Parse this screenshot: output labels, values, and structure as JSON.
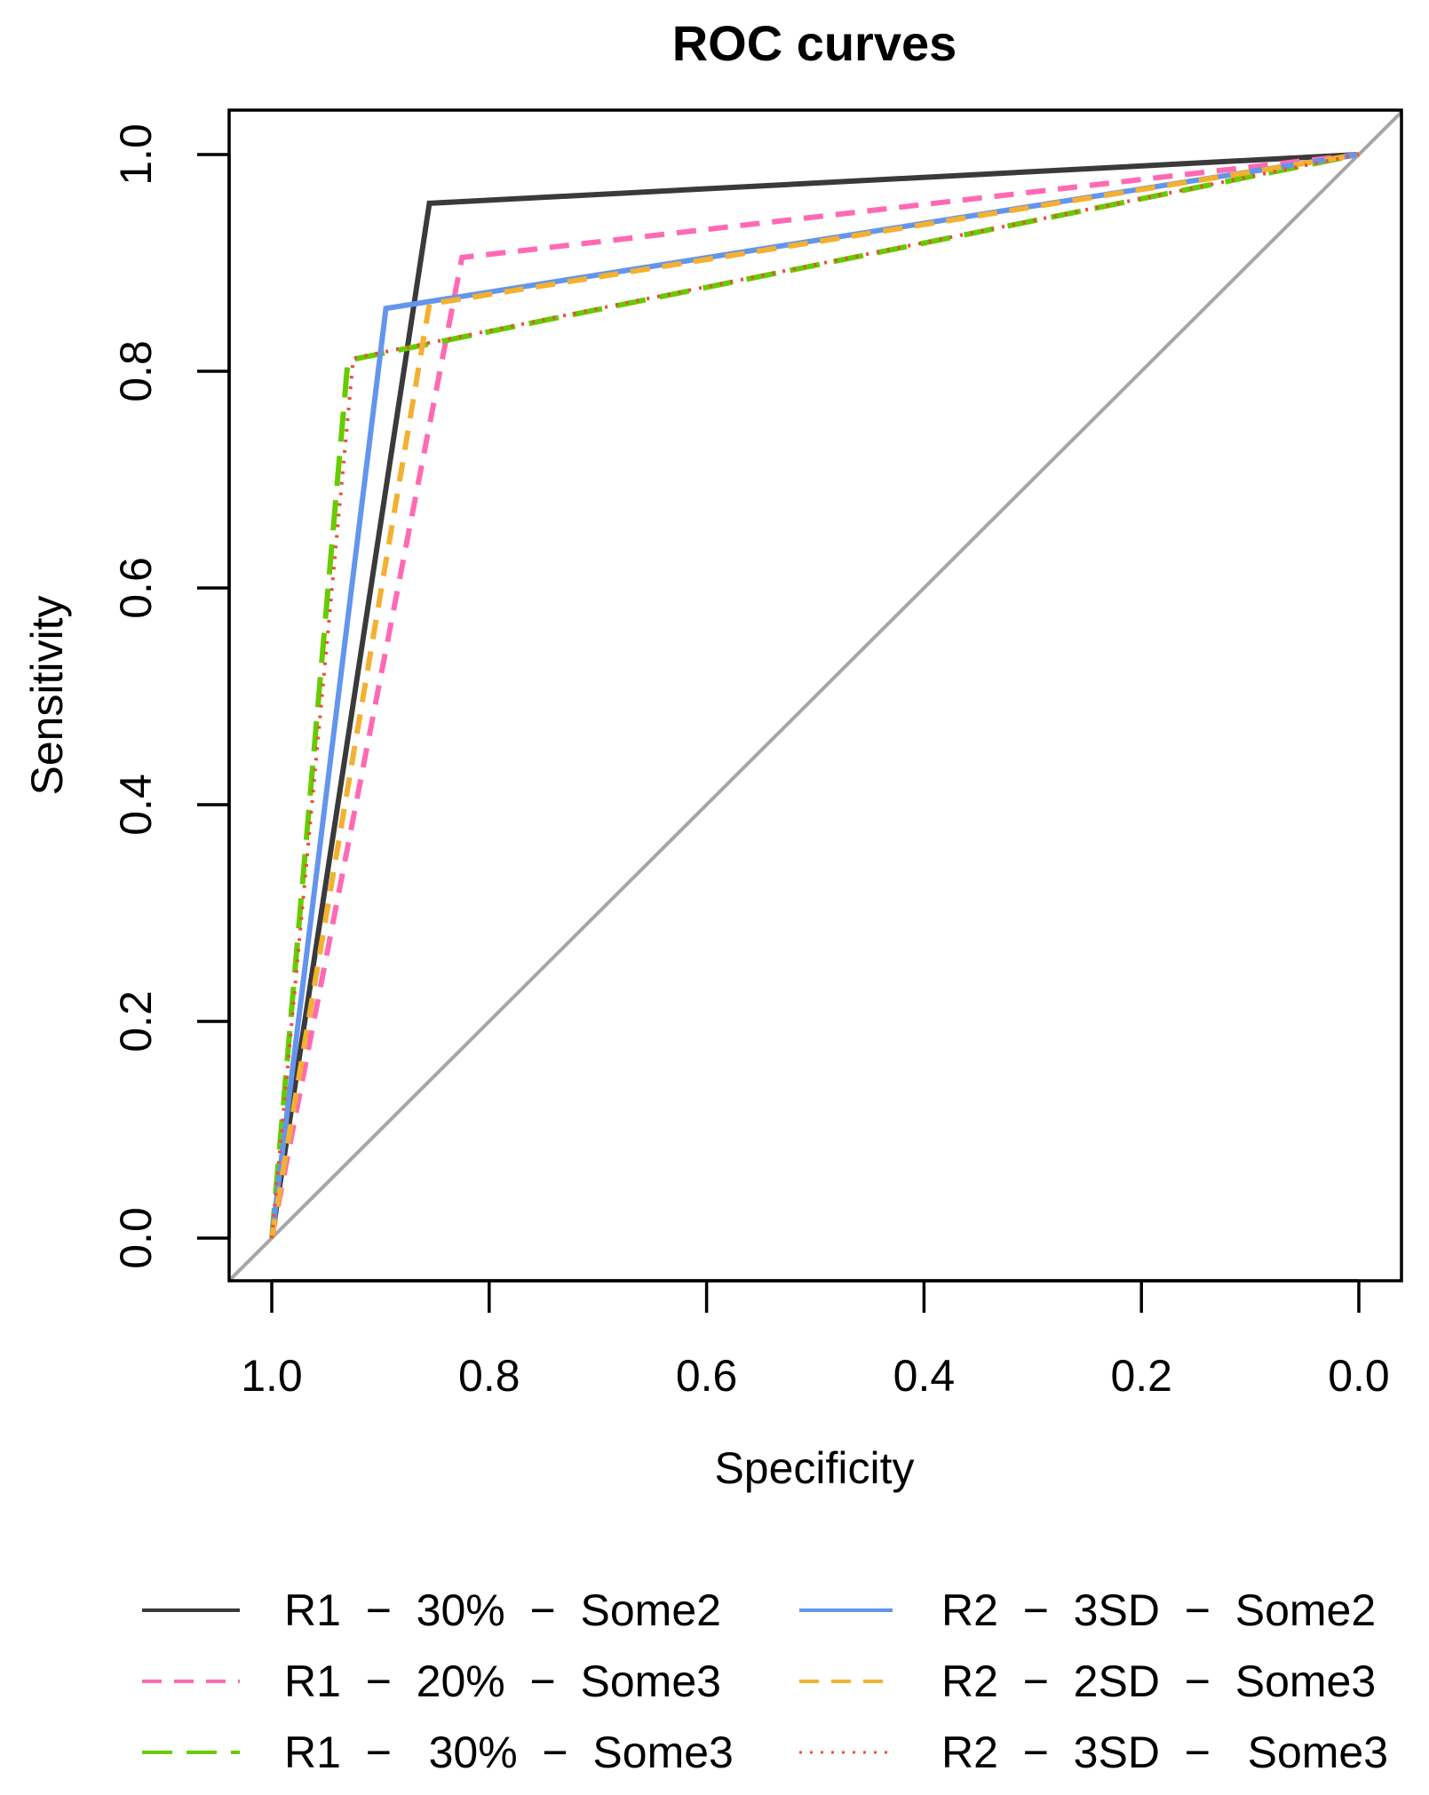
{
  "chart_data": {
    "type": "line",
    "title": "ROC curves",
    "xlabel": "Specificity",
    "ylabel": "Sensitivity",
    "xlim": [
      1.0,
      0.0
    ],
    "ylim": [
      0.0,
      1.0
    ],
    "x_reversed": true,
    "x_ticks": [
      "1.0",
      "0.8",
      "0.6",
      "0.4",
      "0.2",
      "0.0"
    ],
    "y_ticks": [
      "0.0",
      "0.2",
      "0.4",
      "0.6",
      "0.8",
      "1.0"
    ],
    "grid": false,
    "legend_position": "bottom",
    "reference_line": {
      "name": "chance diagonal",
      "color": "#a6a6a6",
      "points": [
        [
          1.0,
          0.0
        ],
        [
          0.0,
          1.0
        ]
      ]
    },
    "series": [
      {
        "name": "R1  −  30%  −  Some2",
        "color": "#3a3a3a",
        "dash": "solid",
        "specificity": [
          1.0,
          0.855,
          0.0
        ],
        "sensitivity": [
          0.0,
          0.955,
          1.0
        ]
      },
      {
        "name": "R1  −  20%  −  Some3",
        "color": "#ff69b4",
        "dash": "dashed",
        "specificity": [
          1.0,
          0.825,
          0.0
        ],
        "sensitivity": [
          0.0,
          0.905,
          1.0
        ]
      },
      {
        "name": "R1  −   30%  −  Some3",
        "color": "#66cc00",
        "dash": "longdash",
        "specificity": [
          1.0,
          0.93,
          0.0
        ],
        "sensitivity": [
          0.0,
          0.81,
          1.0
        ]
      },
      {
        "name": "R2  −  3SD  −  Some2",
        "color": "#6495ed",
        "dash": "solid",
        "specificity": [
          1.0,
          0.895,
          0.0
        ],
        "sensitivity": [
          0.0,
          0.858,
          1.0
        ]
      },
      {
        "name": "R2  −  2SD  −  Some3",
        "color": "#f4b030",
        "dash": "dashed",
        "specificity": [
          1.0,
          0.855,
          0.0
        ],
        "sensitivity": [
          0.0,
          0.862,
          1.0
        ]
      },
      {
        "name": "R2  −  3SD  −   Some3",
        "color": "#e8503a",
        "dash": "dotted",
        "specificity": [
          1.0,
          0.925,
          0.0
        ],
        "sensitivity": [
          0.0,
          0.812,
          1.0
        ]
      }
    ]
  }
}
